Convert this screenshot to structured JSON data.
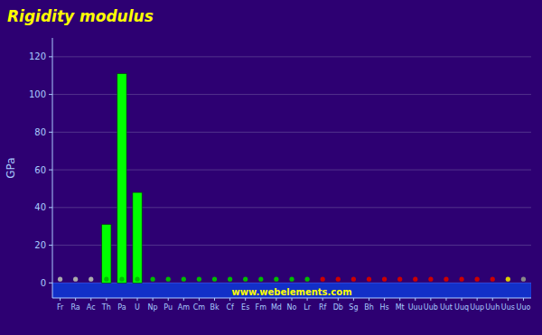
{
  "chart_data": {
    "type": "bar",
    "title": "Rigidity modulus",
    "y_label": "GPa",
    "annotations": [
      "www.webelements.com"
    ],
    "categories": [
      "Fr",
      "Ra",
      "Ac",
      "Th",
      "Pa",
      "U",
      "Np",
      "Pu",
      "Am",
      "Cm",
      "Bk",
      "Cf",
      "Es",
      "Fm",
      "Md",
      "No",
      "Lr",
      "Rf",
      "Db",
      "Sg",
      "Bh",
      "Hs",
      "Mt",
      "Uuu",
      "Uub",
      "Uut",
      "Uuq",
      "Uup",
      "Uuh",
      "Uus",
      "Uuo"
    ],
    "series": [
      {
        "type": "bar",
        "color": "#00ff00",
        "values": [
          0,
          0,
          0,
          31,
          111,
          48,
          0,
          0,
          0,
          0,
          0,
          0,
          0,
          0,
          0,
          0,
          0,
          0,
          0,
          0,
          0,
          0,
          0,
          0,
          0,
          0,
          0,
          0,
          0,
          0,
          0
        ]
      },
      {
        "type": "scatter",
        "marker": "circle",
        "colors": [
          "#aaaaaa",
          "#aaaaaa",
          "#aaaaaa",
          "#00bb00",
          "#00bb00",
          "#00bb00",
          "#00bb00",
          "#00bb00",
          "#00bb00",
          "#00bb00",
          "#00bb00",
          "#00bb00",
          "#00bb00",
          "#00bb00",
          "#00bb00",
          "#00bb00",
          "#00bb00",
          "#cc0000",
          "#cc0000",
          "#cc0000",
          "#cc0000",
          "#cc0000",
          "#cc0000",
          "#cc0000",
          "#cc0000",
          "#cc0000",
          "#cc0000",
          "#cc0000",
          "#cc0000",
          "#ddcc00",
          "#888888"
        ],
        "values": [
          2,
          2,
          2,
          2,
          2,
          2,
          2,
          2,
          2,
          2,
          2,
          2,
          2,
          2,
          2,
          2,
          2,
          2,
          2,
          2,
          2,
          2,
          2,
          2,
          2,
          2,
          2,
          2,
          2,
          2,
          2
        ]
      }
    ],
    "ylim": [
      -8,
      130
    ],
    "yticks": [
      0,
      20,
      40,
      60,
      80,
      100,
      120
    ],
    "grid": true
  }
}
